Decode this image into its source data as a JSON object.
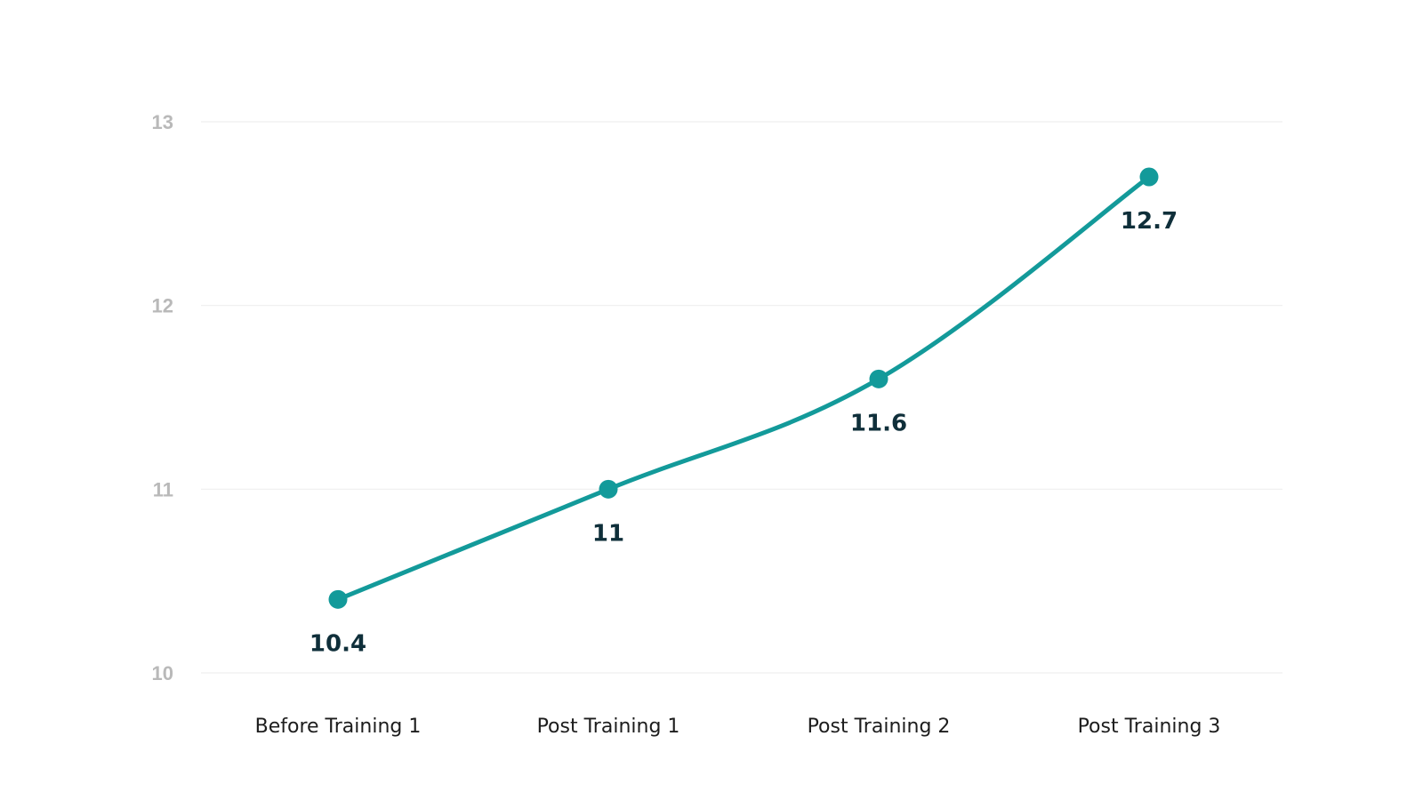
{
  "chart_data": {
    "type": "line",
    "title": "",
    "xlabel": "",
    "ylabel": "",
    "categories": [
      "Before Training 1",
      "Post Training 1",
      "Post Training 2",
      "Post Training 3"
    ],
    "series": [
      {
        "values": [
          10.4,
          11,
          11.6,
          12.7
        ],
        "data_labels": [
          "10.4",
          "11",
          "11.6",
          "12.7"
        ],
        "color": "#139a9a"
      }
    ],
    "ylim": [
      10,
      13
    ],
    "y_ticks": [
      10,
      11,
      12,
      13
    ],
    "y_tick_labels": [
      "10",
      "11",
      "12",
      "13"
    ],
    "grid": true,
    "legend": "none",
    "smooth": true,
    "colors": {
      "line": "#139a9a",
      "point": "#139a9a",
      "data_label": "#0f2f3a",
      "y_tick": "#b9b9b9",
      "x_tick": "#1d1d1d",
      "grid": "#efefef"
    }
  }
}
